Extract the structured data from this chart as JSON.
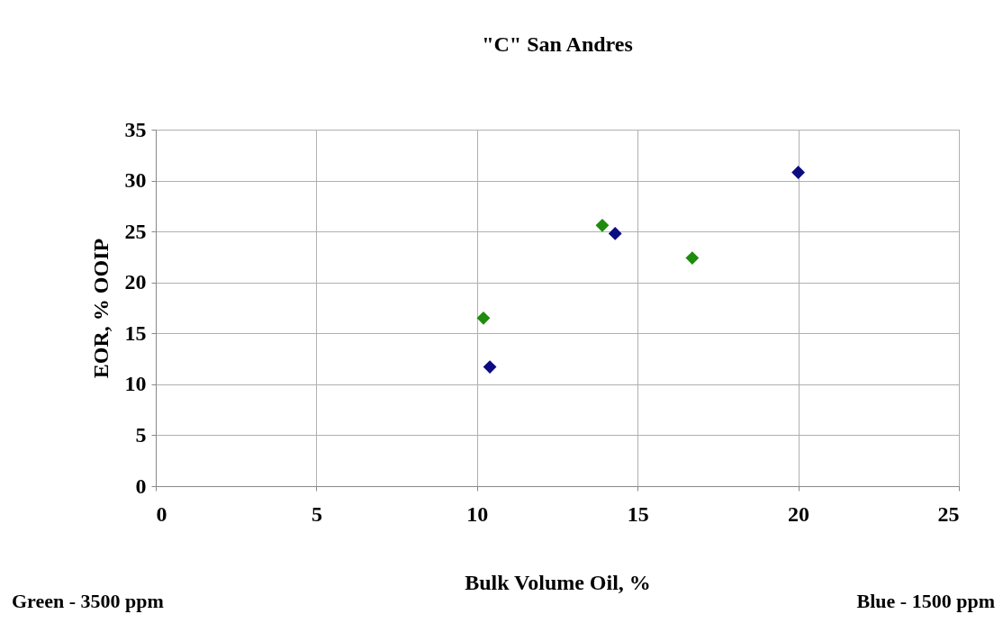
{
  "chart_data": {
    "type": "scatter",
    "title": "\"C\" San Andres",
    "xlabel": "Bulk Volume Oil, %",
    "ylabel": "EOR, % OOIP",
    "series": [
      {
        "color": "#1e8c0c",
        "x": [
          10.2,
          13.9,
          16.7
        ],
        "values": [
          16.5,
          25.6,
          22.4
        ]
      },
      {
        "color": "#0c0c82",
        "x": [
          10.4,
          14.3,
          20.0
        ],
        "values": [
          11.7,
          24.8,
          30.8
        ]
      }
    ],
    "xlim": [
      0,
      25
    ],
    "xticks": [
      0,
      5,
      10,
      15,
      20,
      25
    ],
    "ylim": [
      0,
      35
    ],
    "yticks": [
      0,
      5,
      10,
      15,
      20,
      25,
      30,
      35
    ],
    "grid": true,
    "marker": "diamond",
    "legend": false,
    "annotations": [
      "Green - 3500 ppm",
      "Blue - 1500 ppm"
    ]
  }
}
